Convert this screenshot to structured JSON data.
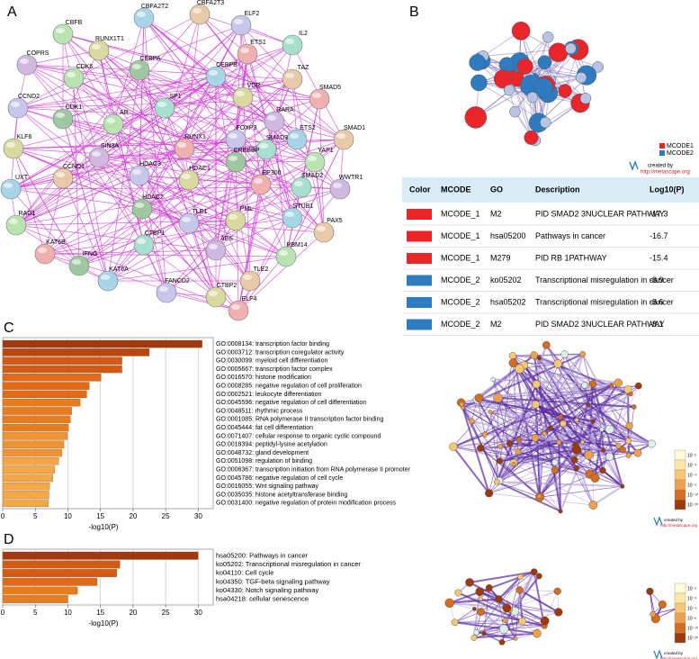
{
  "panel_labels": [
    "A",
    "B",
    "C",
    "D"
  ],
  "network_a": {
    "nodes": [
      "CBFB",
      "CBFA2T2",
      "CBFA2T3",
      "ELF2",
      "RUNX1T1",
      "ETS1",
      "IL2",
      "COPRS",
      "CEBPA",
      "CDK6",
      "CEBPB",
      "TAZ",
      "CCND2",
      "VDR",
      "SMAD5",
      "SP1",
      "RARA",
      "CDK1",
      "AR",
      "ETS2",
      "SMAD1",
      "FOXP3",
      "KLF6",
      "RUNX1",
      "SMAD3",
      "SIN3A",
      "CREBBP",
      "YAP1",
      "UXT",
      "CCND1",
      "HDAC3",
      "HDAC1",
      "EP300",
      "SMAD2",
      "WWTR1",
      "HDAC2",
      "RAG1",
      "STUB1",
      "PAX5",
      "TLE1",
      "PML",
      "KAT6B",
      "CTBP1",
      "AES",
      "IFNG",
      "RBM14",
      "KAT6A",
      "TLE2",
      "FANCD2",
      "CTBP2",
      "ELF4"
    ]
  },
  "network_b": {
    "legend": [
      {
        "name": "MCODE1",
        "color": "#e8262a"
      },
      {
        "name": "MCODE2",
        "color": "#2f7bbf"
      }
    ],
    "credit": "created by",
    "url": "http://metascape.org"
  },
  "table": {
    "header": [
      "Color",
      "MCODE",
      "GO",
      "Description",
      "Log10(P)"
    ],
    "rows": [
      [
        "MCODE_1",
        "M2",
        "PID SMAD2 3NUCLEAR PATHWAY",
        "-17.3"
      ],
      [
        "MCODE_1",
        "hsa05200",
        "Pathways in cancer",
        "-16.7"
      ],
      [
        "MCODE_1",
        "M279",
        "PID RB 1PATHWAY",
        "-15.4"
      ],
      [
        "MCODE_2",
        "ko05202",
        "Transcriptional misregulation in cancer",
        "-8.9"
      ],
      [
        "MCODE_2",
        "hsa05202",
        "Transcriptional misregulation in cancer",
        "-8.6"
      ],
      [
        "MCODE_2",
        "M2",
        "PID SMAD2 3NUCLEAR PATHWAY",
        "-8.1"
      ]
    ],
    "row_colors": [
      "#e8262a",
      "#e8262a",
      "#e8262a",
      "#2f7bbf",
      "#2f7bbf",
      "#2f7bbf"
    ]
  },
  "chart_data": [
    {
      "type": "bar",
      "orientation": "horizontal",
      "xlabel": "-log10(P)",
      "xlim": [
        0,
        32.3
      ],
      "xticks": [
        0,
        5,
        10,
        15,
        20,
        25,
        30
      ],
      "grid": true,
      "categories": [
        "GO:0008134: transcription factor binding",
        "GO:0003712: transcription coregulator activity",
        "GO:0030099: myeloid cell differentiation",
        "GO:0005667: transcription factor complex",
        "GO:0016570: histone modification",
        "GO:0008285: negative regulation of cell proliferation",
        "GO:0002521: leukocyte differentiation",
        "GO:0045596: negative regulation of cell differentiation",
        "GO:0048511: rhythmic process",
        "GO:0001085: RNA polymerase II transcription factor binding",
        "GO:0045444: fat cell differentiation",
        "GO:0071407: cellular response to organic cyclic compound",
        "GO:0018394: peptidyl-lysine acetylation",
        "GO:0048732: gland development",
        "GO:0051098: regulation of binding",
        "GO:0006367: transcription initiation from RNA polymerase II promoter",
        "GO:0045786: negative regulation of cell cycle",
        "GO:0016055: Wnt signaling pathway",
        "GO:0035035: histone acetyltransferase binding",
        "GO:0031400: negative regulation of protein modification process"
      ],
      "values": [
        30.6,
        22.5,
        18.3,
        18.3,
        15.1,
        13.3,
        12.9,
        11.9,
        10.6,
        10.4,
        10.1,
        9.9,
        9.4,
        9.1,
        8.6,
        8.0,
        7.7,
        7.2,
        7.1,
        7.0
      ],
      "colors": [
        "#a1380e",
        "#b8470f",
        "#d25a12",
        "#d25a12",
        "#e06a17",
        "#e06a17",
        "#e06a17",
        "#e87d20",
        "#e87d20",
        "#e87d20",
        "#e87d20",
        "#f09433",
        "#f09433",
        "#f09433",
        "#f5a745",
        "#f5a745",
        "#f5a745",
        "#f5a745",
        "#f5a745",
        "#f5a745"
      ]
    },
    {
      "type": "bar",
      "orientation": "horizontal",
      "xlabel": "-log10(P)",
      "xlim": [
        0,
        32.3
      ],
      "xticks": [
        0,
        5,
        10,
        15,
        20,
        25,
        30
      ],
      "grid": true,
      "categories": [
        "hsa05200: Pathways in cancer",
        "ko05202: Transcriptional misregulation in cancer",
        "ko04110: Cell cycle",
        "ko04350: TGF-beta signaling pathway",
        "ko04330: Notch signaling pathway",
        "hsa04218: cellular senescence"
      ],
      "values": [
        30,
        18,
        17.5,
        14.5,
        11.5,
        10
      ],
      "colors": [
        "#a1380e",
        "#d25a12",
        "#d25a12",
        "#e06a17",
        "#e87d20",
        "#e87d20"
      ]
    }
  ],
  "enrichment_legend": {
    "labels": [
      "10⁻²",
      "10⁻³",
      "10⁻⁴",
      "10⁻⁶",
      "10⁻¹⁰",
      "10⁻²⁰"
    ],
    "colors": [
      "#fffbd6",
      "#fbe7a6",
      "#f7c870",
      "#eea04a",
      "#d36d22",
      "#9c3a0c"
    ],
    "credit": "created by",
    "url": "http://metascape.org"
  }
}
